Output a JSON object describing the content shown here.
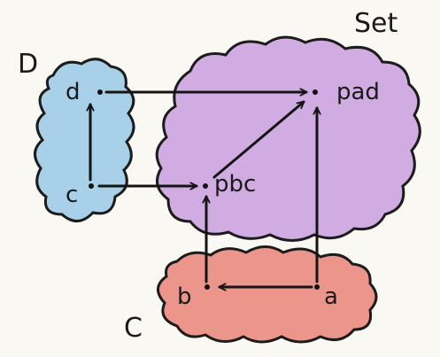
{
  "categories": {
    "set": {
      "label": "Set",
      "fill": "#c99fe0"
    },
    "d": {
      "label": "D",
      "fill": "#9ecbe8"
    },
    "c": {
      "label": "C",
      "fill": "#ea8a80"
    }
  },
  "objects": {
    "d": "d",
    "c": "c",
    "pad": "pad",
    "pbc": "pbc",
    "b": "b",
    "a": "a"
  },
  "arrows": [
    {
      "from": "d",
      "to": "pad"
    },
    {
      "from": "c",
      "to": "d"
    },
    {
      "from": "c",
      "to": "pbc"
    },
    {
      "from": "pbc",
      "to": "pad"
    },
    {
      "from": "b",
      "to": "pbc"
    },
    {
      "from": "a",
      "to": "b"
    },
    {
      "from": "a",
      "to": "pad"
    }
  ]
}
